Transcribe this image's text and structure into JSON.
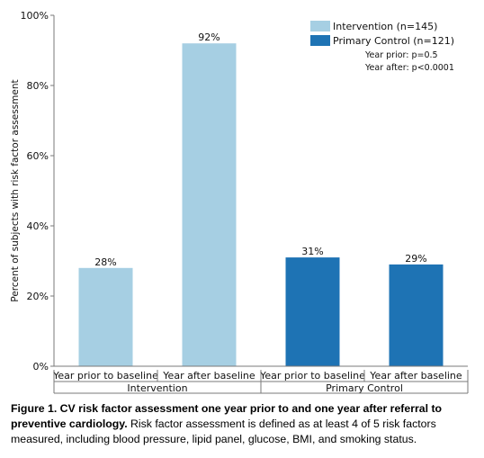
{
  "chart_data": {
    "type": "bar",
    "ylabel": "Percent of subjects with risk factor assessment",
    "ylim": [
      0,
      100
    ],
    "yticks": [
      "0%",
      "20%",
      "40%",
      "60%",
      "80%",
      "100%"
    ],
    "ytick_values": [
      0,
      20,
      40,
      60,
      80,
      100
    ],
    "grid": false,
    "legend_position": "top-right",
    "groups": [
      {
        "label": "Intervention",
        "bars": [
          {
            "category": "Year prior to baseline",
            "value": 28,
            "label": "28%",
            "series": "Intervention (n=145)"
          },
          {
            "category": "Year after baseline",
            "value": 92,
            "label": "92%",
            "series": "Intervention (n=145)"
          }
        ]
      },
      {
        "label": "Primary Control",
        "bars": [
          {
            "category": "Year prior to baseline",
            "value": 31,
            "label": "31%",
            "series": "Primary Control (n=121)"
          },
          {
            "category": "Year after baseline",
            "value": 29,
            "label": "29%",
            "series": "Primary Control (n=121)"
          }
        ]
      }
    ],
    "series": [
      {
        "name": "Intervention (n=145)",
        "color": "#a6cfe3"
      },
      {
        "name": "Primary Control (n=121)",
        "color": "#1e73b4"
      }
    ],
    "annotations": [
      "Year prior: p=0.5",
      "Year after: p<0.0001"
    ]
  },
  "caption": {
    "bold": "Figure 1. CV risk factor assessment one year prior to and one year after referral to preventive cardiology.",
    "text": " Risk factor assessment is defined as at least 4 of 5 risk factors measured, including blood pressure, lipid panel, glucose, BMI, and smoking status."
  }
}
